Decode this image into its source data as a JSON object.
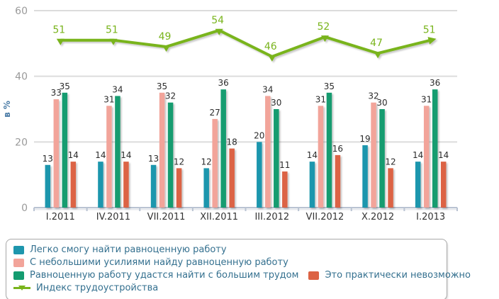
{
  "chart_data": {
    "type": "bar+line",
    "title": "",
    "xlabel": "",
    "ylabel": "в %",
    "ylim": [
      0,
      60
    ],
    "yticks": [
      0,
      20,
      40,
      60
    ],
    "grid": true,
    "legend_position": "bottom",
    "categories": [
      "I.2011",
      "IV.2011",
      "VII.2011",
      "XII.2011",
      "III.2012",
      "VII.2012",
      "X.2012",
      "I.2013"
    ],
    "bar_series": [
      {
        "name": "Легко смогу найти равноценную работу",
        "color": "#1e96ad",
        "values": [
          13,
          14,
          13,
          12,
          20,
          14,
          19,
          14
        ]
      },
      {
        "name": "С небольшими усилиями найду равноценную работу",
        "color": "#f2a49a",
        "values": [
          33,
          31,
          35,
          27,
          34,
          31,
          32,
          31
        ]
      },
      {
        "name": "Равноценную работу удастся найти с большим трудом",
        "color": "#149c70",
        "values": [
          35,
          34,
          32,
          36,
          30,
          35,
          30,
          36
        ]
      },
      {
        "name": "Это практически невозможно",
        "color": "#dc6344",
        "values": [
          14,
          14,
          12,
          18,
          11,
          16,
          12,
          14
        ]
      }
    ],
    "line_series": {
      "name": "Индекс трудоустройства",
      "color": "#79b41c",
      "values": [
        51,
        51,
        49,
        54,
        46,
        52,
        47,
        51
      ]
    }
  },
  "legend": {
    "rows": [
      [
        0
      ],
      [
        1
      ],
      [
        2,
        3
      ],
      [
        "line"
      ]
    ]
  },
  "style_colors": {
    "gridline": "#dcdcdc",
    "axis": "#b9c3d2",
    "y_tick_text": "#9a9a9a",
    "bar_value_text": "#2b2b2b",
    "category_text": "#333333",
    "legend_text": "#34708f"
  }
}
